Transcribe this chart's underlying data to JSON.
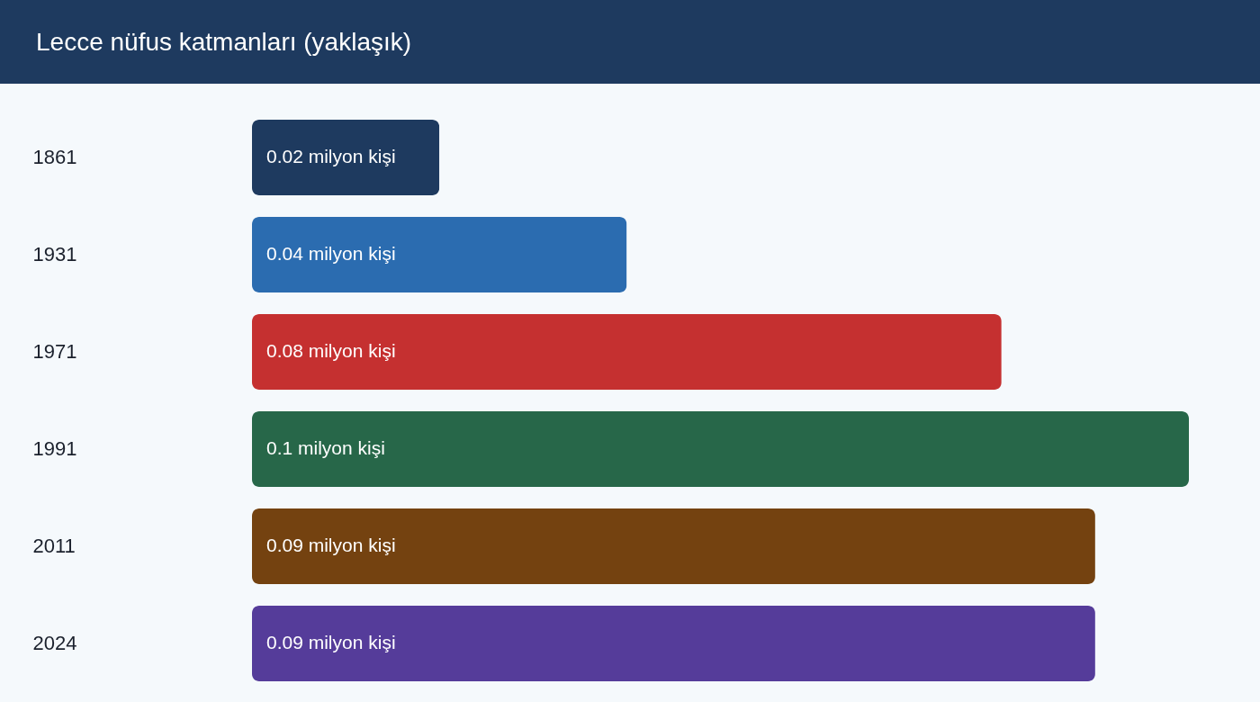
{
  "chart_data": {
    "type": "bar",
    "orientation": "horizontal",
    "title": "Lecce nüfus katmanları (yaklaşık)",
    "categories": [
      "1861",
      "1931",
      "1971",
      "1991",
      "2011",
      "2024"
    ],
    "values": [
      0.02,
      0.04,
      0.08,
      0.1,
      0.09,
      0.09
    ],
    "colors": [
      "#1e3a5f",
      "#2b6cb0",
      "#c53030",
      "#276749",
      "#744210",
      "#553c9a"
    ],
    "value_labels": [
      "0.02 milyon kişi",
      "0.04 milyon kişi",
      "0.08 milyon kişi",
      "0.1 milyon kişi",
      "0.09 milyon kişi",
      "0.09 milyon kişi"
    ],
    "tick_labels": "y"
  }
}
